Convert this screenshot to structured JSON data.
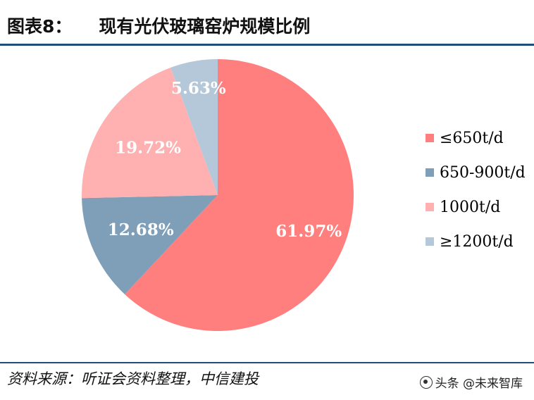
{
  "header": {
    "figure_no": "图表8：",
    "title": "现有光伏玻璃窑炉规模比例"
  },
  "chart_data": {
    "type": "pie",
    "categories": [
      "≤650t/d",
      "650-900t/d",
      "1000t/d",
      "≥1200t/d"
    ],
    "values": [
      61.97,
      12.68,
      19.72,
      5.63
    ],
    "labels": [
      "61.97%",
      "12.68%",
      "19.72%",
      "5.63%"
    ],
    "colors": [
      "#ff7f7f",
      "#7f9fb8",
      "#ffb0b0",
      "#b4c8da"
    ],
    "start": "12 o'clock",
    "direction": "clockwise",
    "legend_position": "right"
  },
  "footer": {
    "source": "资料来源：听证会资料整理，中信建投",
    "watermark": "头条 @未来智库"
  }
}
